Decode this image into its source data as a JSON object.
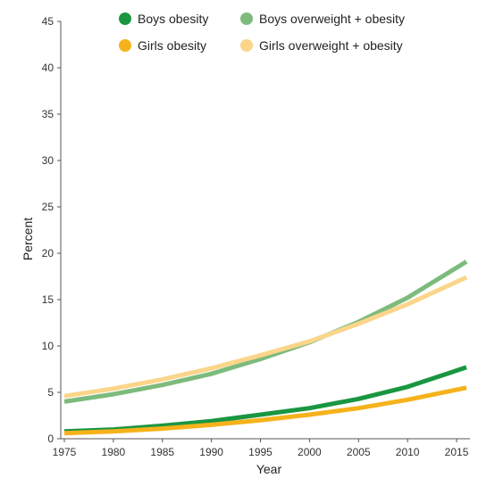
{
  "chart_data": {
    "type": "line",
    "title": "",
    "xlabel": "Year",
    "ylabel": "Percent",
    "xlim": [
      1975,
      2016
    ],
    "ylim": [
      0,
      45
    ],
    "x_ticks": [
      1975,
      1980,
      1985,
      1990,
      1995,
      2000,
      2005,
      2010,
      2015
    ],
    "y_ticks": [
      0,
      5,
      10,
      15,
      20,
      25,
      30,
      35,
      40,
      45
    ],
    "grid": false,
    "legend_position": "top",
    "x": [
      1975,
      1980,
      1985,
      1990,
      1995,
      2000,
      2005,
      2010,
      2016
    ],
    "series": [
      {
        "name": "Boys obesity",
        "color": "#1a9641",
        "values": [
          0.8,
          1.0,
          1.4,
          1.9,
          2.6,
          3.3,
          4.3,
          5.6,
          7.7
        ]
      },
      {
        "name": "Girls obesity",
        "color": "#f5b21b",
        "values": [
          0.6,
          0.8,
          1.1,
          1.5,
          2.0,
          2.6,
          3.3,
          4.2,
          5.5
        ]
      },
      {
        "name": "Boys overweight + obesity",
        "color": "#7dbb7d",
        "values": [
          4.0,
          4.8,
          5.8,
          7.0,
          8.6,
          10.4,
          12.6,
          15.2,
          19.1
        ]
      },
      {
        "name": "Girls overweight + obesity",
        "color": "#fbd58a",
        "values": [
          4.6,
          5.4,
          6.4,
          7.6,
          9.0,
          10.5,
          12.4,
          14.5,
          17.4
        ]
      }
    ],
    "legend_layout": [
      [
        "Boys obesity",
        "Boys overweight + obesity"
      ],
      [
        "Girls obesity",
        "Girls overweight + obesity"
      ]
    ]
  }
}
